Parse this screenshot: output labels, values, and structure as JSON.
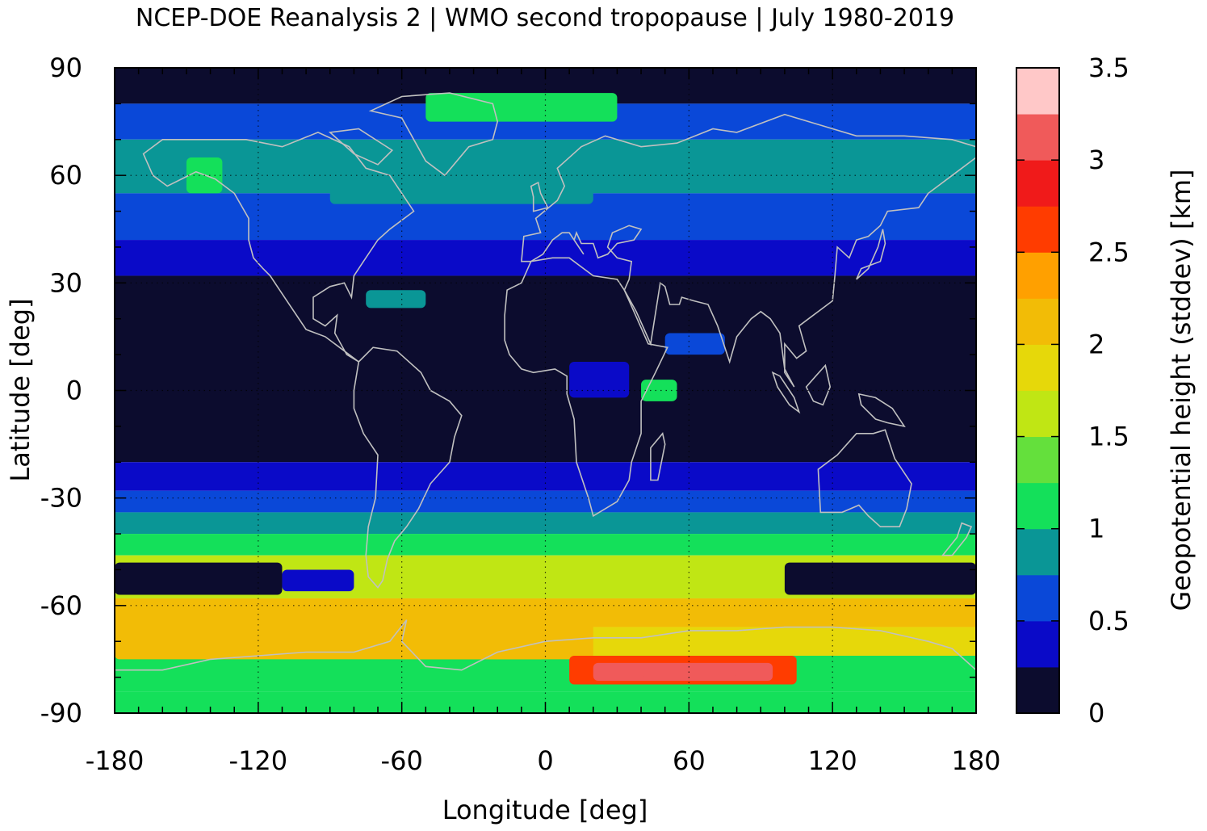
{
  "chart_data": {
    "type": "heatmap",
    "title": "NCEP-DOE Reanalysis 2 | WMO second tropopause | July 1980-2019",
    "xlabel": "Longitude [deg]",
    "ylabel": "Latitude [deg]",
    "colorbar_label": "Geopotential height (stddev) [km]",
    "xlim": [
      -180,
      180
    ],
    "ylim": [
      -90,
      90
    ],
    "x_ticks": [
      -180,
      -120,
      -60,
      0,
      60,
      120,
      180
    ],
    "y_ticks": [
      -90,
      -60,
      -30,
      0,
      30,
      60,
      90
    ],
    "x_tick_labels": [
      "-180",
      "-120",
      "-60",
      "0",
      "60",
      "120",
      "180"
    ],
    "y_tick_labels": [
      "-90",
      "-60",
      "-30",
      "0",
      "30",
      "60",
      "90"
    ],
    "grid": "dotted at -120, -60, 0, 60, 120 lon and -60, -30, 0, 30, 60 lat",
    "colorbar": {
      "range": [
        0,
        3.5
      ],
      "tick_values": [
        0,
        0.5,
        1,
        1.5,
        2,
        2.5,
        3,
        3.5
      ],
      "tick_labels": [
        "0",
        "0.5",
        "1",
        "1.5",
        "2",
        "2.5",
        "3",
        "3.5"
      ],
      "levels": [
        0,
        0.25,
        0.5,
        0.75,
        1.0,
        1.25,
        1.5,
        1.75,
        2.0,
        2.25,
        2.5,
        2.75,
        3.0,
        3.25,
        3.5
      ],
      "colors": [
        "#0c0c2e",
        "#0a0ac8",
        "#0a48d8",
        "#0a9696",
        "#14e05a",
        "#64e03c",
        "#c0e614",
        "#e6d80a",
        "#f2bc06",
        "#ffa000",
        "#ff3c00",
        "#f01a1a",
        "#f05a5a",
        "#ffc8c8"
      ]
    },
    "coastline_color": "#c0c0c0",
    "zonal_bands": [
      {
        "lat_range": [
          80,
          90
        ],
        "value": 0.1
      },
      {
        "lat_range": [
          70,
          80
        ],
        "value": 0.6
      },
      {
        "lat_range": [
          55,
          70
        ],
        "value": 0.9
      },
      {
        "lat_range": [
          42,
          55
        ],
        "value": 0.6
      },
      {
        "lat_range": [
          32,
          42
        ],
        "value": 0.35
      },
      {
        "lat_range": [
          -20,
          32
        ],
        "value": 0.1
      },
      {
        "lat_range": [
          -28,
          -20
        ],
        "value": 0.35
      },
      {
        "lat_range": [
          -34,
          -28
        ],
        "value": 0.6
      },
      {
        "lat_range": [
          -40,
          -34
        ],
        "value": 0.9
      },
      {
        "lat_range": [
          -46,
          -40
        ],
        "value": 1.2
      },
      {
        "lat_range": [
          -58,
          -46
        ],
        "value": 1.5
      },
      {
        "lat_range": [
          -66,
          -58
        ],
        "value": 2.1
      },
      {
        "lat_range": [
          -74,
          -66
        ],
        "value": 1.9
      },
      {
        "lat_range": [
          -84,
          -74
        ],
        "value": 1.0
      },
      {
        "lat_range": [
          -90,
          -84
        ],
        "value": 1.2
      }
    ],
    "features": [
      {
        "lon_range": [
          -180,
          -110
        ],
        "lat_range": [
          -57,
          -48
        ],
        "value": 0.1
      },
      {
        "lon_range": [
          -110,
          -80
        ],
        "lat_range": [
          -56,
          -50
        ],
        "value": 0.4
      },
      {
        "lon_range": [
          100,
          180
        ],
        "lat_range": [
          -57,
          -48
        ],
        "value": 0.2
      },
      {
        "lon_range": [
          -55,
          20
        ],
        "lat_range": [
          -75,
          -64
        ],
        "value": 2.1
      },
      {
        "lon_range": [
          -180,
          0
        ],
        "lat_range": [
          -75,
          -63
        ],
        "value": 2.0
      },
      {
        "lon_range": [
          -50,
          30
        ],
        "lat_range": [
          75,
          83
        ],
        "value": 1.0
      },
      {
        "lon_range": [
          -150,
          -135
        ],
        "lat_range": [
          55,
          65
        ],
        "value": 1.2
      },
      {
        "lon_range": [
          -90,
          20
        ],
        "lat_range": [
          52,
          66
        ],
        "value": 0.9
      },
      {
        "lon_range": [
          10,
          105
        ],
        "lat_range": [
          -82,
          -74
        ],
        "value": 2.6
      },
      {
        "lon_range": [
          20,
          95
        ],
        "lat_range": [
          -81,
          -76
        ],
        "value": 3.0
      },
      {
        "lon_range": [
          40,
          80
        ],
        "lat_range": [
          -80,
          -78
        ],
        "value": 3.1
      },
      {
        "lon_range": [
          10,
          35
        ],
        "lat_range": [
          -2,
          8
        ],
        "value": 0.4
      },
      {
        "lon_range": [
          50,
          75
        ],
        "lat_range": [
          10,
          16
        ],
        "value": 0.5
      },
      {
        "lon_range": [
          -75,
          -50
        ],
        "lat_range": [
          23,
          28
        ],
        "value": 0.8
      },
      {
        "lon_range": [
          40,
          55
        ],
        "lat_range": [
          -3,
          3
        ],
        "value": 1.1
      }
    ]
  }
}
